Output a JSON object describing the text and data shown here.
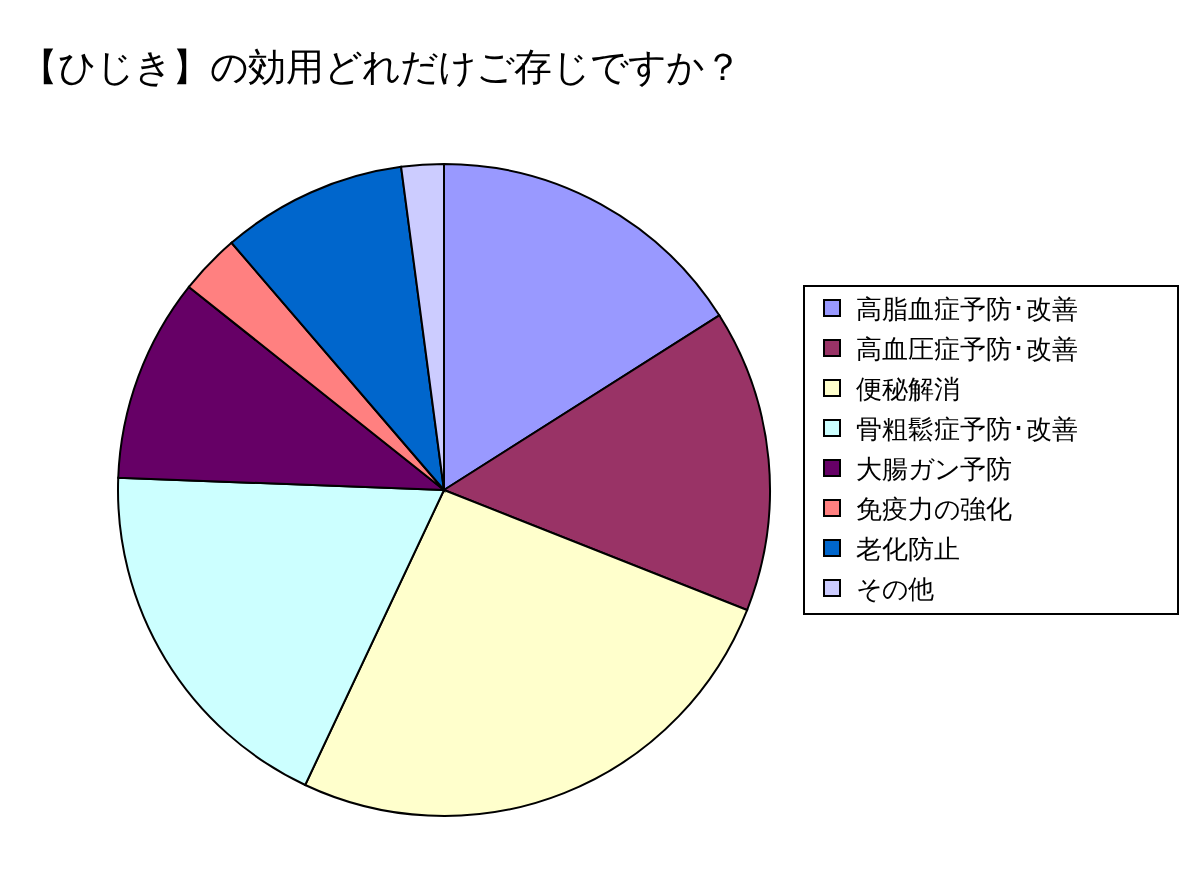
{
  "chart_data": {
    "type": "pie",
    "title": "【ひじき】の効用どれだけご存じですか？",
    "categories": [
      "高脂血症予防･改善",
      "高血圧症予防･改善",
      "便秘解消",
      "骨粗鬆症予防･改善",
      "大腸ガン予防",
      "免疫力の強化",
      "老化防止",
      "その他"
    ],
    "values": [
      16,
      15,
      26,
      18.6,
      10.1,
      3,
      9.2,
      2.1
    ],
    "colors": [
      "#9999ff",
      "#993366",
      "#ffffcc",
      "#ccffff",
      "#660066",
      "#ff8080",
      "#0066cc",
      "#ccccff"
    ],
    "legend": "right"
  }
}
